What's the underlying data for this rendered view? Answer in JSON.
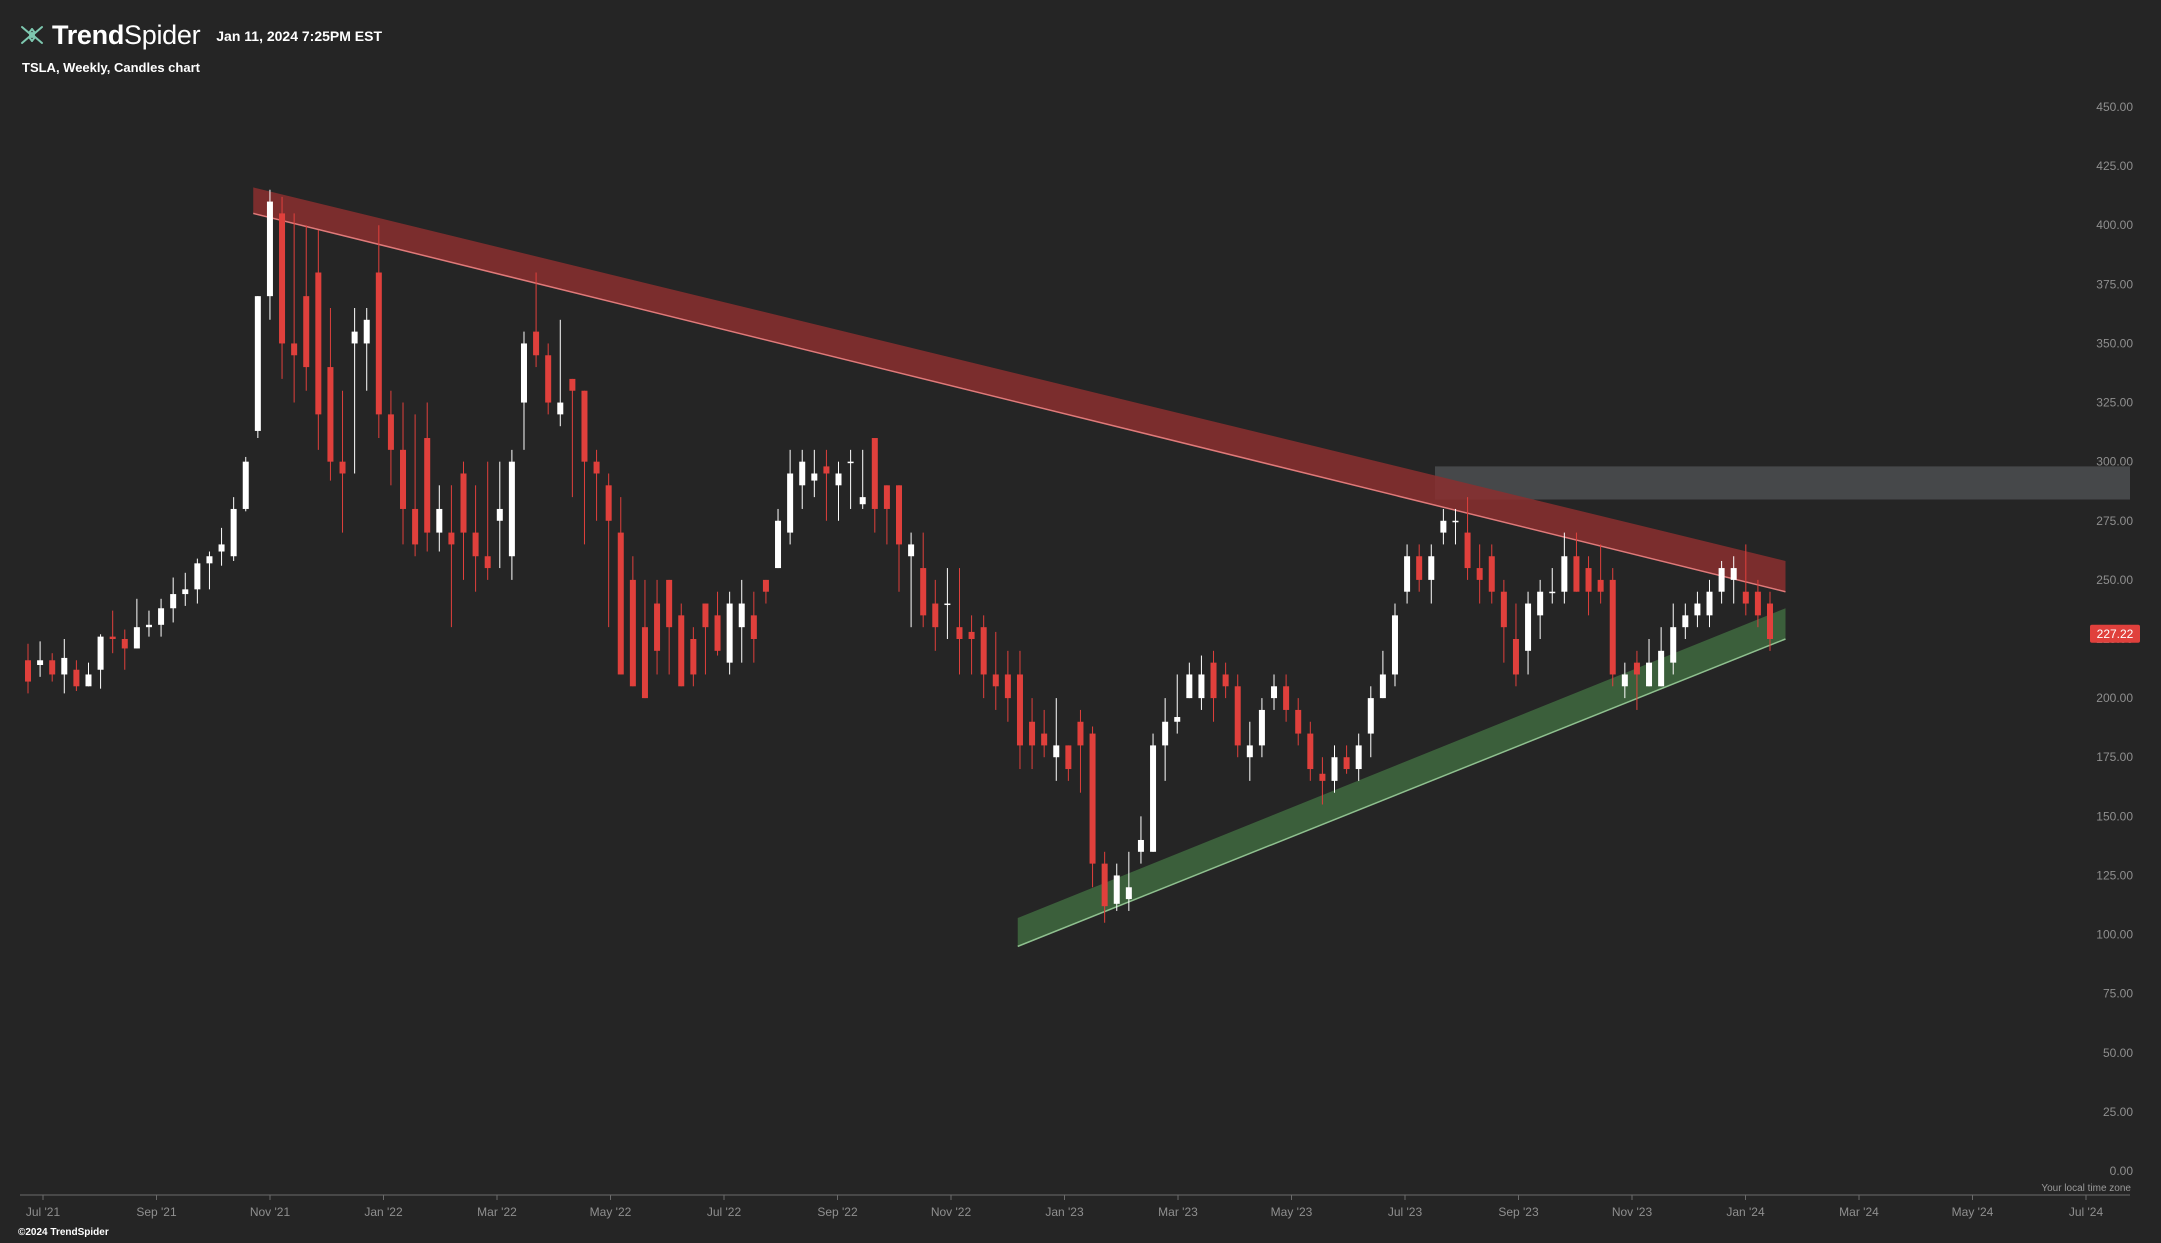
{
  "header": {
    "brand_bold": "Trend",
    "brand_light": "Spider",
    "timestamp": "Jan 11, 2024 7:25PM EST",
    "subtitle": "TSLA, Weekly, Candles chart"
  },
  "footer": {
    "copyright": "©2024 TrendSpider",
    "timezone_note": "Your local time zone"
  },
  "colors": {
    "background": "#252525",
    "up_candle": "#ffffff",
    "down_candle": "#e0403c",
    "resistance_band": "#8b2f2f",
    "support_band": "#3f6a3f",
    "zone": "#4a4c4f",
    "price_tag": "#e0403c"
  },
  "chart_data": {
    "type": "candlestick",
    "symbol": "TSLA",
    "timeframe": "Weekly",
    "ylim": [
      0,
      450
    ],
    "y_ticks": [
      "0.00",
      "25.00",
      "50.00",
      "75.00",
      "100.00",
      "125.00",
      "150.00",
      "175.00",
      "200.00",
      "225.00",
      "250.00",
      "275.00",
      "300.00",
      "325.00",
      "350.00",
      "375.00",
      "400.00",
      "425.00",
      "450.00"
    ],
    "x_ticks": [
      "Jul '21",
      "Sep '21",
      "Nov '21",
      "Jan '22",
      "Mar '22",
      "May '22",
      "Jul '22",
      "Sep '22",
      "Nov '22",
      "Jan '23",
      "Mar '23",
      "May '23",
      "Jul '23",
      "Sep '23",
      "Nov '23",
      "Jan '24",
      "Mar '24",
      "May '24",
      "Jul '24"
    ],
    "last_price": "227.22",
    "last_price_value": 227.22,
    "candles": [
      [
        216,
        207,
        223,
        202
      ],
      [
        214,
        216,
        224,
        209
      ],
      [
        216,
        210,
        219,
        207
      ],
      [
        210,
        217,
        225,
        202
      ],
      [
        212,
        205,
        216,
        203
      ],
      [
        205,
        210,
        215,
        206
      ],
      [
        212,
        226,
        227,
        204
      ],
      [
        226,
        225,
        237,
        219
      ],
      [
        225,
        221,
        229,
        212
      ],
      [
        221,
        230,
        242,
        222
      ],
      [
        230,
        231,
        237,
        226
      ],
      [
        231,
        238,
        242,
        226
      ],
      [
        238,
        244,
        251,
        232
      ],
      [
        244,
        246,
        253,
        239
      ],
      [
        246,
        257,
        259,
        240
      ],
      [
        257,
        260,
        262,
        246
      ],
      [
        262,
        265,
        272,
        256
      ],
      [
        260,
        280,
        285,
        258
      ],
      [
        280,
        300,
        302,
        279
      ],
      [
        313,
        370,
        370,
        310
      ],
      [
        370,
        410,
        415,
        360
      ],
      [
        405,
        350,
        412,
        335
      ],
      [
        350,
        345,
        405,
        325
      ],
      [
        370,
        340,
        400,
        330
      ],
      [
        380,
        320,
        398,
        305
      ],
      [
        340,
        300,
        365,
        292
      ],
      [
        300,
        295,
        330,
        270
      ],
      [
        350,
        355,
        365,
        295
      ],
      [
        350,
        360,
        365,
        330
      ],
      [
        380,
        320,
        400,
        310
      ],
      [
        320,
        305,
        330,
        290
      ],
      [
        305,
        280,
        325,
        265
      ],
      [
        280,
        265,
        320,
        260
      ],
      [
        310,
        270,
        325,
        262
      ],
      [
        270,
        280,
        290,
        262
      ],
      [
        270,
        265,
        290,
        230
      ],
      [
        295,
        270,
        300,
        250
      ],
      [
        270,
        260,
        290,
        245
      ],
      [
        260,
        255,
        300,
        250
      ],
      [
        275,
        280,
        300,
        255
      ],
      [
        260,
        300,
        305,
        250
      ],
      [
        325,
        350,
        355,
        305
      ],
      [
        355,
        345,
        380,
        340
      ],
      [
        345,
        325,
        350,
        320
      ],
      [
        320,
        325,
        360,
        315
      ],
      [
        335,
        330,
        335,
        285
      ],
      [
        330,
        300,
        330,
        265
      ],
      [
        300,
        295,
        305,
        275
      ],
      [
        290,
        275,
        295,
        230
      ],
      [
        270,
        210,
        285,
        230
      ],
      [
        250,
        205,
        260,
        210
      ],
      [
        230,
        200,
        250,
        215
      ],
      [
        240,
        220,
        250,
        210
      ],
      [
        250,
        230,
        250,
        210
      ],
      [
        235,
        205,
        240,
        210
      ],
      [
        225,
        210,
        230,
        205
      ],
      [
        240,
        230,
        240,
        210
      ],
      [
        235,
        220,
        245,
        218
      ],
      [
        215,
        240,
        245,
        210
      ],
      [
        230,
        240,
        250,
        215
      ],
      [
        235,
        225,
        245,
        215
      ],
      [
        250,
        245,
        250,
        240
      ],
      [
        255,
        275,
        280,
        255
      ],
      [
        270,
        295,
        305,
        265
      ],
      [
        290,
        300,
        305,
        280
      ],
      [
        292,
        295,
        305,
        285
      ],
      [
        298,
        295,
        305,
        275
      ],
      [
        290,
        295,
        300,
        275
      ],
      [
        300,
        300,
        305,
        280
      ],
      [
        282,
        285,
        305,
        280
      ],
      [
        310,
        280,
        310,
        270
      ],
      [
        290,
        280,
        290,
        265
      ],
      [
        290,
        265,
        270,
        245
      ],
      [
        260,
        265,
        270,
        230
      ],
      [
        255,
        235,
        270,
        230
      ],
      [
        240,
        230,
        250,
        220
      ],
      [
        240,
        240,
        255,
        225
      ],
      [
        230,
        225,
        255,
        210
      ],
      [
        228,
        225,
        235,
        210
      ],
      [
        230,
        210,
        235,
        200
      ],
      [
        210,
        205,
        228,
        195
      ],
      [
        210,
        200,
        220,
        190
      ],
      [
        210,
        180,
        220,
        170
      ],
      [
        190,
        180,
        200,
        170
      ],
      [
        185,
        180,
        195,
        175
      ],
      [
        175,
        180,
        200,
        165
      ],
      [
        180,
        170,
        180,
        165
      ],
      [
        190,
        180,
        195,
        160
      ],
      [
        185,
        130,
        188,
        120
      ],
      [
        130,
        112,
        135,
        105
      ],
      [
        113,
        125,
        130,
        110
      ],
      [
        115,
        120,
        135,
        110
      ],
      [
        135,
        140,
        150,
        130
      ],
      [
        135,
        180,
        185,
        135
      ],
      [
        180,
        190,
        200,
        165
      ],
      [
        190,
        192,
        210,
        185
      ],
      [
        200,
        210,
        215,
        200
      ],
      [
        200,
        210,
        218,
        195
      ],
      [
        215,
        200,
        220,
        190
      ],
      [
        210,
        205,
        215,
        200
      ],
      [
        205,
        180,
        210,
        175
      ],
      [
        175,
        180,
        190,
        165
      ],
      [
        180,
        195,
        200,
        175
      ],
      [
        200,
        205,
        210,
        195
      ],
      [
        205,
        195,
        210,
        190
      ],
      [
        195,
        185,
        200,
        180
      ],
      [
        185,
        170,
        190,
        165
      ],
      [
        168,
        165,
        175,
        155
      ],
      [
        165,
        175,
        180,
        160
      ],
      [
        175,
        170,
        180,
        168
      ],
      [
        170,
        180,
        185,
        165
      ],
      [
        185,
        200,
        205,
        175
      ],
      [
        200,
        210,
        220,
        200
      ],
      [
        210,
        235,
        240,
        205
      ],
      [
        245,
        260,
        265,
        240
      ],
      [
        260,
        250,
        265,
        245
      ],
      [
        250,
        260,
        265,
        240
      ],
      [
        270,
        275,
        280,
        265
      ],
      [
        275,
        275,
        280,
        265
      ],
      [
        270,
        255,
        285,
        250
      ],
      [
        255,
        250,
        265,
        240
      ],
      [
        260,
        245,
        265,
        240
      ],
      [
        245,
        230,
        250,
        215
      ],
      [
        225,
        210,
        240,
        205
      ],
      [
        220,
        240,
        245,
        210
      ],
      [
        235,
        245,
        250,
        225
      ],
      [
        245,
        245,
        255,
        240
      ],
      [
        245,
        260,
        270,
        240
      ],
      [
        260,
        245,
        270,
        245
      ],
      [
        255,
        245,
        260,
        235
      ],
      [
        250,
        245,
        265,
        240
      ],
      [
        250,
        210,
        255,
        205
      ],
      [
        205,
        210,
        215,
        200
      ],
      [
        215,
        210,
        220,
        195
      ],
      [
        205,
        215,
        225,
        205
      ],
      [
        205,
        220,
        230,
        205
      ],
      [
        215,
        230,
        240,
        210
      ],
      [
        230,
        235,
        240,
        225
      ],
      [
        235,
        240,
        245,
        230
      ],
      [
        235,
        245,
        250,
        230
      ],
      [
        245,
        255,
        258,
        240
      ],
      [
        250,
        255,
        260,
        240
      ],
      [
        245,
        240,
        265,
        235
      ],
      [
        245,
        235,
        250,
        230
      ],
      [
        240,
        225,
        245,
        220
      ]
    ],
    "trendlines": [
      {
        "name": "resistance",
        "start": {
          "x": "Oct '21",
          "y": [
            405,
            416
          ]
        },
        "end": {
          "x": "Jan '24",
          "y": [
            245,
            258
          ]
        }
      },
      {
        "name": "support",
        "start": {
          "x": "Dec '22",
          "y": [
            95,
            107
          ]
        },
        "end": {
          "x": "Jan '24",
          "y": [
            225,
            238
          ]
        }
      }
    ],
    "zones": [
      {
        "name": "supply-zone",
        "y_range": [
          284,
          298
        ],
        "x_start": "Jul '23"
      }
    ]
  }
}
